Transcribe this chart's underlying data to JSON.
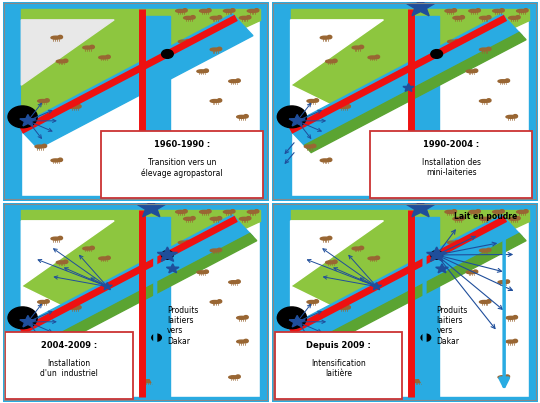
{
  "panels": [
    {
      "id": 0,
      "title": "1960-1990 :",
      "subtitle": "Transition vers un\nélevage agropastoral",
      "star_top": false,
      "star_at_junction": false,
      "star_mid_road": false,
      "star_bottom": true,
      "green_triangle": true,
      "green_strip": false,
      "radiate_from_mid": false,
      "radiate_from_junction": false,
      "down_arrow": false,
      "right_arrows": false,
      "down_arrow_label": "",
      "lait_poudre": false,
      "box_left": false
    },
    {
      "id": 1,
      "title": "1990-2004 :",
      "subtitle": "Installation des\nmini-laiteries",
      "star_top": true,
      "star_at_junction": false,
      "star_mid_road": true,
      "star_bottom": true,
      "green_triangle": false,
      "green_strip": true,
      "radiate_from_mid": false,
      "radiate_from_junction": false,
      "down_arrow": false,
      "right_arrows": false,
      "down_arrow_label": "",
      "lait_poudre": false,
      "box_left": false
    },
    {
      "id": 2,
      "title": "2004-2009 :",
      "subtitle": "Installation\nd'un  industriel",
      "star_top": true,
      "star_at_junction": true,
      "star_mid_road": false,
      "star_bottom": true,
      "green_triangle": false,
      "green_strip": true,
      "radiate_from_mid": true,
      "radiate_from_junction": false,
      "down_arrow": true,
      "right_arrows": false,
      "down_arrow_label": "Produits\nlaitiers\nvers\nDakar",
      "lait_poudre": false,
      "box_left": true
    },
    {
      "id": 3,
      "title": "Depuis 2009 :",
      "subtitle": "Intensification\nlaitière",
      "star_top": true,
      "star_at_junction": true,
      "star_mid_road": false,
      "star_bottom": true,
      "green_triangle": false,
      "green_strip": true,
      "radiate_from_mid": true,
      "radiate_from_junction": true,
      "down_arrow": true,
      "right_arrows": true,
      "down_arrow_label": "Produits\nlaitiers\nvers\nDakar",
      "lait_poudre": true,
      "box_left": true
    }
  ],
  "CYAN": "#29ABE2",
  "RED": "#EE1111",
  "GREEN": "#8DC63F",
  "DKGREEN": "#5BA432",
  "STAR": "#1F4E9B",
  "BROWN": "#996633",
  "BOX_EDGE": "#CC3333",
  "WHITE_TRI": "#E8E8E8"
}
